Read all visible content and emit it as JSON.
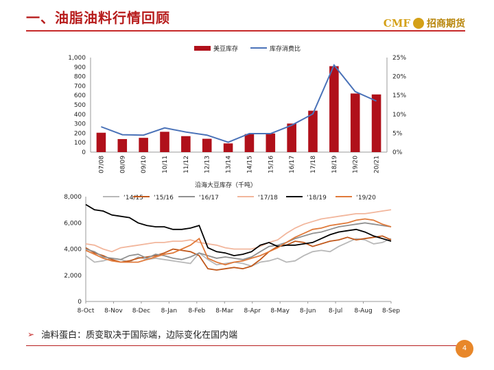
{
  "header": {
    "title": "一、油脂油料行情回顾",
    "logo_text": "CMF",
    "logo_cn": "招商期货"
  },
  "colors": {
    "bar": "#b0101a",
    "ratio": "#4a72b8",
    "s1415": "#b8b8b8",
    "s1516": "#c0581b",
    "s1617": "#909090",
    "s1718": "#f2b69c",
    "s1819": "#000000",
    "s1920": "#e07a3a"
  },
  "chart_data": [
    {
      "type": "bar",
      "categories": [
        "07/08",
        "08/09",
        "09/10",
        "10/11",
        "11/12",
        "12/13",
        "13/14",
        "14/15",
        "15/16",
        "16/17",
        "17/18",
        "18/19",
        "19/20",
        "20/21"
      ],
      "series": [
        {
          "name": "美豆库存",
          "axis": "left",
          "values": [
            205,
            138,
            151,
            215,
            169,
            141,
            92,
            191,
            197,
            302,
            438,
            909,
            620,
            610
          ]
        },
        {
          "name": "库存消费比",
          "type": "line",
          "axis": "right",
          "unit": "%",
          "values": [
            6.7,
            4.6,
            4.5,
            6.4,
            5.3,
            4.5,
            2.6,
            4.9,
            4.9,
            7.1,
            10.1,
            23.0,
            16.0,
            13.5
          ]
        }
      ],
      "yticks_left": [
        "0",
        "100",
        "200",
        "300",
        "400",
        "500",
        "600",
        "700",
        "800",
        "900",
        "1,000"
      ],
      "yticks_right": [
        "0%",
        "5%",
        "10%",
        "15%",
        "20%",
        "25%"
      ],
      "ylim_left": [
        0,
        1000
      ],
      "ylim_right": [
        0,
        25
      ]
    },
    {
      "type": "line",
      "title": "沿海大豆库存（千吨）",
      "x_ticks": [
        "8-Oct",
        "8-Nov",
        "8-Dec",
        "8-Jan",
        "8-Feb",
        "8-Mar",
        "8-Apr",
        "8-May",
        "8-Jun",
        "8-Jul",
        "8-Aug",
        "8-Sep"
      ],
      "yticks": [
        "0",
        "2,000",
        "4,000",
        "6,000",
        "8,000"
      ],
      "ylim": [
        0,
        8000
      ],
      "series": [
        {
          "name": "‘14/15",
          "color_key": "s1415",
          "values": [
            3500,
            3000,
            3100,
            3300,
            3200,
            3000,
            3400,
            3200,
            3300,
            3200,
            3100,
            3000,
            2900,
            3700,
            3200,
            2800,
            2900,
            3000,
            2900,
            2700,
            3000,
            3100,
            3300,
            3000,
            3100,
            3500,
            3800,
            3900,
            3800,
            4200,
            4500,
            4800,
            4700,
            4400,
            4500,
            4800
          ]
        },
        {
          "name": "‘15/16",
          "color_key": "s1516",
          "values": [
            4100,
            3700,
            3500,
            3200,
            3000,
            3100,
            3300,
            3400,
            3500,
            3700,
            4000,
            3900,
            3800,
            3500,
            2500,
            2400,
            2500,
            2600,
            2500,
            2700,
            3200,
            3800,
            4200,
            4300,
            4600,
            4500,
            4200,
            4400,
            4600,
            4700,
            4900,
            4700,
            4800,
            4900,
            5000,
            4700
          ]
        },
        {
          "name": "‘16/17",
          "color_key": "s1617",
          "values": [
            4000,
            3800,
            3400,
            3300,
            3200,
            3500,
            3600,
            3300,
            3600,
            3500,
            3300,
            3200,
            3400,
            3700,
            3500,
            3300,
            3400,
            3300,
            3200,
            3400,
            3800,
            4200,
            4300,
            4500,
            4800,
            5000,
            5200,
            5300,
            5500,
            5700,
            5800,
            5900,
            6000,
            5900,
            5800,
            5700
          ]
        },
        {
          "name": "‘17/18",
          "color_key": "s1718",
          "values": [
            4400,
            4300,
            4000,
            3800,
            4100,
            4200,
            4300,
            4400,
            4500,
            4500,
            4600,
            4600,
            4700,
            4500,
            4400,
            4300,
            4100,
            4000,
            4000,
            4000,
            4200,
            4500,
            4700,
            5200,
            5600,
            5900,
            6100,
            6300,
            6400,
            6500,
            6600,
            6700,
            6700,
            6800,
            6900,
            7000
          ]
        },
        {
          "name": "‘18/19",
          "color_key": "s1819",
          "values": [
            7400,
            7000,
            6900,
            6600,
            6500,
            6400,
            6000,
            5800,
            5700,
            5700,
            5500,
            5500,
            5600,
            5800,
            4100,
            3800,
            3700,
            3500,
            3600,
            3800,
            4300,
            4500,
            4200,
            4300,
            4300,
            4400,
            4500,
            4800,
            5100,
            5300,
            5400,
            5500,
            5300,
            5000,
            4800,
            4600
          ]
        },
        {
          "name": "‘19/20",
          "color_key": "s1920",
          "values": [
            3900,
            3600,
            3300,
            3100,
            3000,
            3000,
            3000,
            3200,
            3400,
            3600,
            3700,
            4000,
            4300,
            4800,
            3300,
            3000,
            2800,
            3000,
            3100,
            3300,
            3500,
            3800,
            4100,
            4500,
            4900,
            5200,
            5500,
            5600,
            5800,
            5900,
            6000,
            6200,
            6300,
            6200,
            5900,
            5700
          ]
        }
      ]
    }
  ],
  "bullet": "油料蛋白：质变取决于国际端，边际变化在国内端",
  "page_number": "4"
}
